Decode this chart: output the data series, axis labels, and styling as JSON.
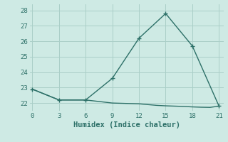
{
  "line1_x": [
    0,
    3,
    6,
    9,
    12,
    15,
    18,
    21
  ],
  "line1_y": [
    22.9,
    22.2,
    22.2,
    23.6,
    26.2,
    27.8,
    25.7,
    21.8
  ],
  "line2_x": [
    0,
    3,
    6,
    9,
    12,
    13,
    14,
    15,
    16,
    17,
    18,
    19,
    20,
    21
  ],
  "line2_y": [
    22.9,
    22.2,
    22.2,
    22.0,
    21.95,
    21.9,
    21.85,
    21.82,
    21.8,
    21.78,
    21.75,
    21.73,
    21.72,
    21.8
  ],
  "line_color": "#2d7068",
  "bg_color": "#ceeae4",
  "grid_color": "#aacfc8",
  "xlabel": "Humidex (Indice chaleur)",
  "xticks": [
    0,
    3,
    6,
    9,
    12,
    15,
    18,
    21
  ],
  "yticks": [
    22,
    23,
    24,
    25,
    26,
    27,
    28
  ],
  "xlim": [
    -0.3,
    21.5
  ],
  "ylim": [
    21.5,
    28.4
  ],
  "font_family": "monospace",
  "marker": "+",
  "markersize": 4,
  "linewidth": 1.0,
  "tick_fontsize": 6.5,
  "xlabel_fontsize": 7.5
}
